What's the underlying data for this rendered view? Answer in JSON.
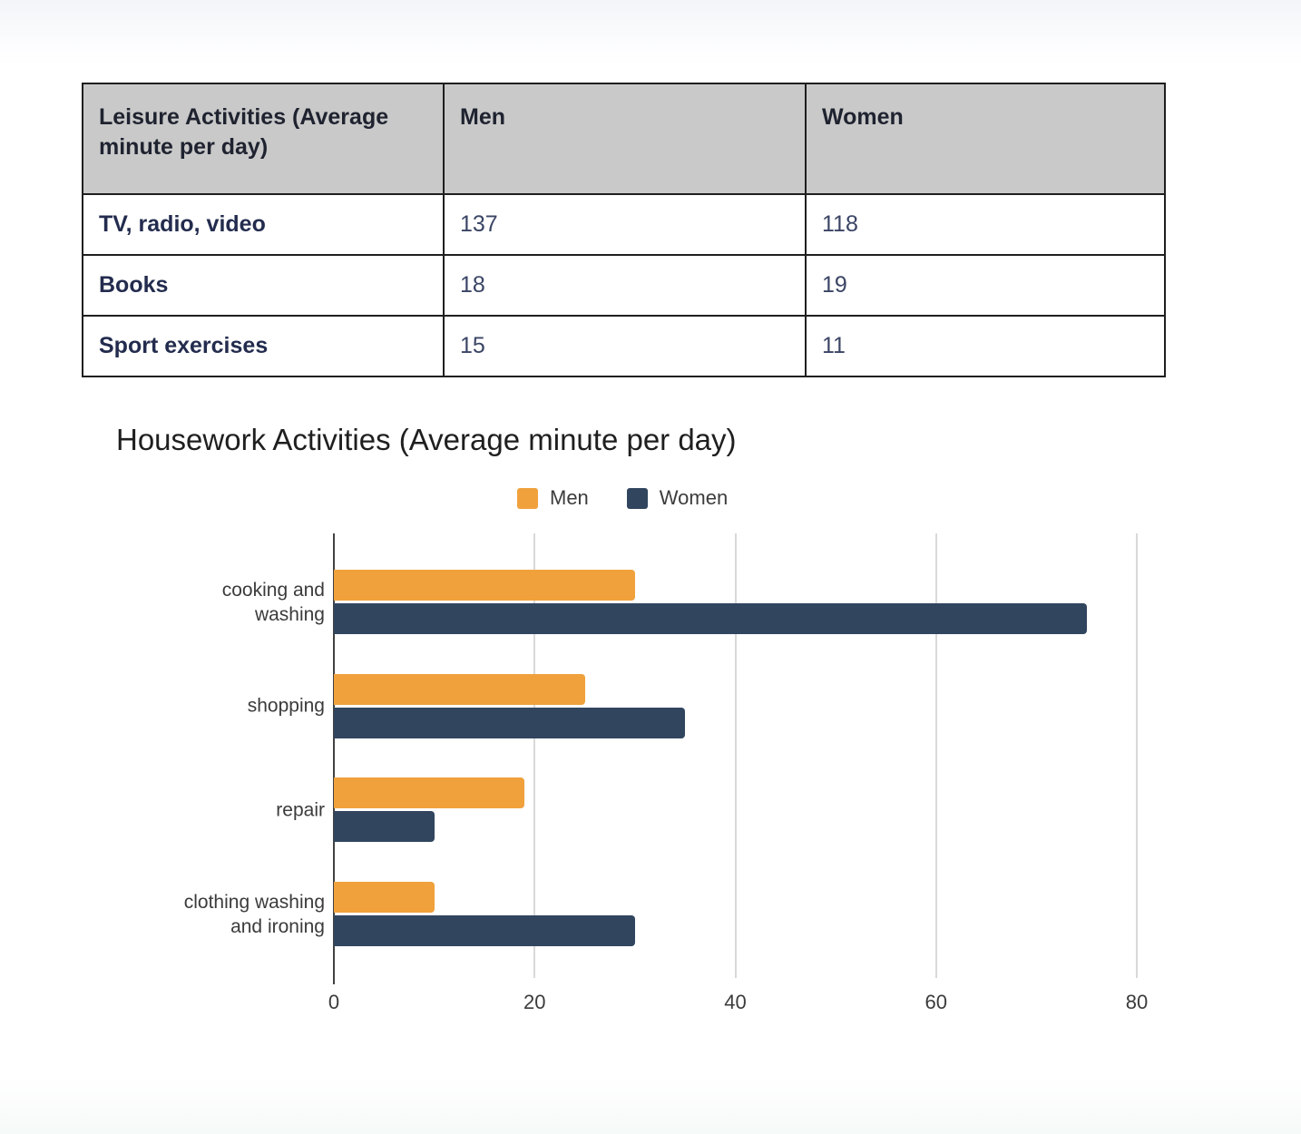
{
  "table": {
    "headers": [
      "Leisure Activities (Average minute per day)",
      "Men",
      "Women"
    ],
    "rows": [
      {
        "label": "TV, radio, video",
        "men": "137",
        "women": "118"
      },
      {
        "label": "Books",
        "men": "18",
        "women": "19"
      },
      {
        "label": "Sport exercises",
        "men": "15",
        "women": "11"
      }
    ]
  },
  "chart": {
    "title": "Housework Activities (Average minute per day)",
    "colors": {
      "men": "#F0A13C",
      "women": "#31455E"
    },
    "header_bg": "#C9C9C9"
  },
  "chart_data": {
    "type": "bar",
    "orientation": "horizontal",
    "title": "Housework Activities (Average minute per day)",
    "categories": [
      "cooking and washing",
      "shopping",
      "repair",
      "clothing washing and ironing"
    ],
    "series": [
      {
        "name": "Men",
        "color": "#F0A13C",
        "values": [
          30,
          25,
          19,
          10
        ]
      },
      {
        "name": "Women",
        "color": "#31455E",
        "values": [
          75,
          35,
          10,
          30
        ]
      }
    ],
    "xlabel": "",
    "ylabel": "",
    "xlim": [
      0,
      80
    ],
    "xticks": [
      0,
      20,
      40,
      60,
      80
    ],
    "grid": true,
    "legend_position": "top"
  }
}
